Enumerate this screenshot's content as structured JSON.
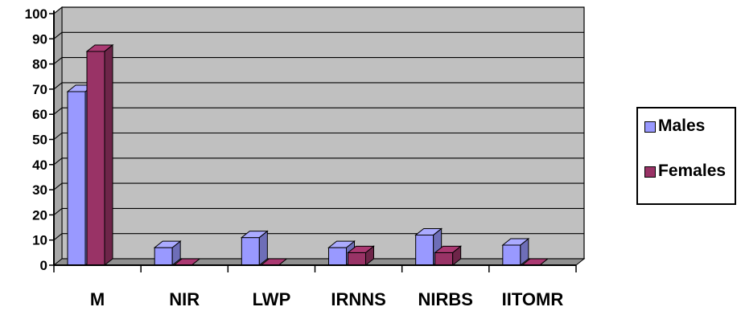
{
  "chart_data": {
    "type": "bar",
    "categories": [
      "M",
      "NIR",
      "LWP",
      "IRNNS",
      "NIRBS",
      "IITOMR"
    ],
    "series": [
      {
        "name": "Males",
        "values": [
          69,
          7,
          11,
          7,
          12,
          8
        ],
        "color": "#9999FF"
      },
      {
        "name": "Females",
        "values": [
          85,
          0,
          0,
          5,
          5,
          0
        ],
        "color": "#993366"
      }
    ],
    "yticks": [
      "0",
      "10",
      "20",
      "30",
      "40",
      "50",
      "60",
      "70",
      "80",
      "90",
      "100"
    ],
    "ylim": [
      0,
      100
    ],
    "grid": true,
    "plot_background": "#C0C0C0",
    "legend_position": "right",
    "title": "",
    "xlabel": "",
    "ylabel": ""
  }
}
